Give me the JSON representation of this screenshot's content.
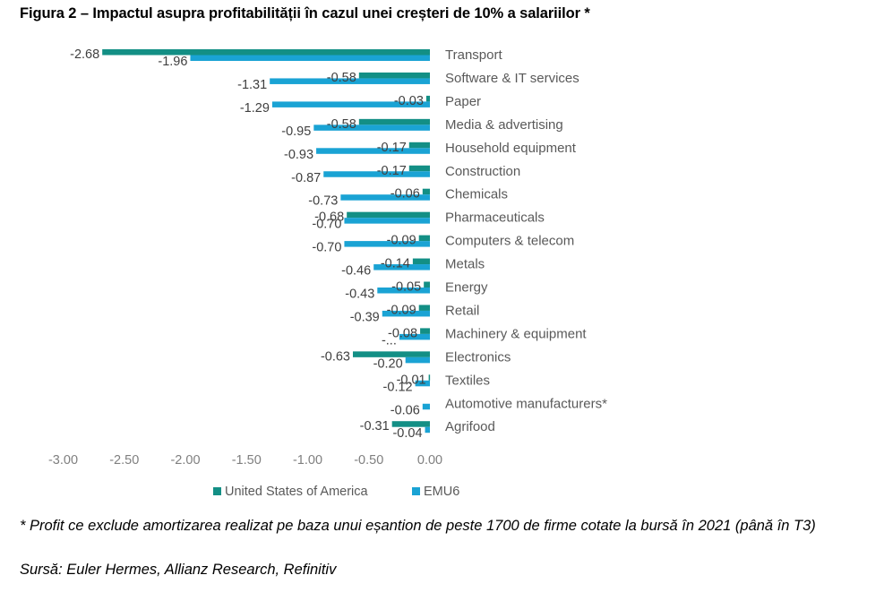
{
  "title": "Figura 2 – Impactul asupra profitabilității în cazul unei creșteri de 10% a salariilor *",
  "footnote": "* Profit ce exclude amortizarea realizat pe baza unui eșantion de peste 1700 de firme cotate la bursă în 2021 (până în T3)",
  "source": "Sursă: Euler Hermes, Allianz Research, Refinitiv",
  "colors": {
    "usa": "#138f85",
    "emu6": "#1aa3d4",
    "axis_text": "#7f7f7f",
    "category_text": "#595959"
  },
  "chart_data": {
    "type": "bar",
    "orientation": "horizontal",
    "categories": [
      "Transport",
      "Software & IT services",
      "Paper",
      "Media & advertising",
      "Household equipment",
      "Construction",
      "Chemicals",
      "Pharmaceuticals",
      "Computers & telecom",
      "Metals",
      "Energy",
      "Retail",
      "Machinery & equipment",
      "Electronics",
      "Textiles",
      "Automotive manufacturers*",
      "Agrifood"
    ],
    "series": [
      {
        "name": "United States of America",
        "values": [
          -2.68,
          -0.58,
          -0.03,
          -0.58,
          -0.17,
          -0.17,
          -0.06,
          -0.68,
          -0.09,
          -0.14,
          -0.05,
          -0.09,
          -0.08,
          -0.63,
          -0.01,
          null,
          -0.31
        ],
        "labels": [
          "-2.68",
          "-0.58",
          "-0.03",
          "-0.58",
          "-0.17",
          "-0.17",
          "-0.06",
          "-0.68",
          "-0.09",
          "-0.14",
          "-0.05",
          "-0.09",
          "-0.08",
          "-0.63",
          "-0.01",
          "",
          "-0.31"
        ]
      },
      {
        "name": "EMU6",
        "values": [
          -1.96,
          -1.31,
          -1.29,
          -0.95,
          -0.93,
          -0.87,
          -0.73,
          -0.7,
          -0.7,
          -0.46,
          -0.43,
          -0.39,
          -0.25,
          -0.2,
          -0.12,
          -0.06,
          -0.04
        ],
        "labels": [
          "-1.96",
          "-1.31",
          "-1.29",
          "-0.95",
          "-0.93",
          "-0.87",
          "-0.73",
          "-0.70",
          "-0.70",
          "-0.46",
          "-0.43",
          "-0.39",
          "-...",
          "-0.20",
          "-0.12",
          "-0.06",
          "-0.04"
        ]
      }
    ],
    "xlim": [
      -3.0,
      0.0
    ],
    "xticks": [
      "-3.00",
      "-2.50",
      "-2.00",
      "-1.50",
      "-1.00",
      "-0.50",
      "0.00"
    ],
    "xtick_values": [
      -3.0,
      -2.5,
      -2.0,
      -1.5,
      -1.0,
      -0.5,
      0.0
    ],
    "legend_position": "bottom",
    "grid": false
  }
}
